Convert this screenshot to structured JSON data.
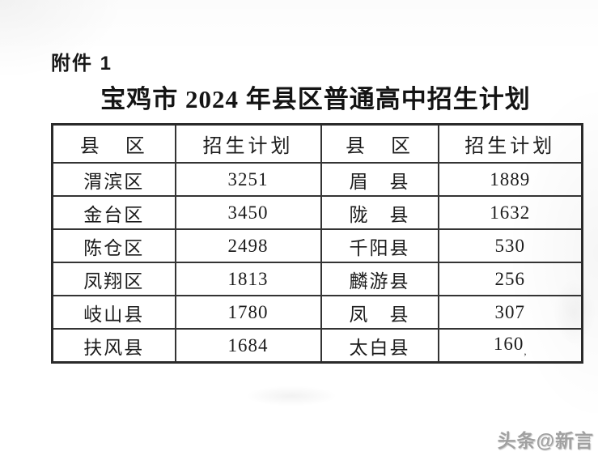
{
  "document": {
    "attachment_label": "附件 1",
    "title": "宝鸡市 2024 年县区普通高中招生计划"
  },
  "table": {
    "headers": [
      "县　区",
      "招生计划",
      "县　区",
      "招生计划"
    ],
    "rows": [
      [
        "渭滨区",
        "3251",
        "眉　县",
        "1889"
      ],
      [
        "金台区",
        "3450",
        "陇　县",
        "1632"
      ],
      [
        "陈仓区",
        "2498",
        "千阳县",
        "530"
      ],
      [
        "凤翔区",
        "1813",
        "麟游县",
        "256"
      ],
      [
        "岐山县",
        "1780",
        "凤　县",
        "307"
      ],
      [
        "扶风县",
        "1684",
        "太白县",
        "160"
      ]
    ],
    "scan_artifact_after_last_value": ","
  },
  "watermark": {
    "text": "头条@新言",
    "color": "#a0a0a0"
  },
  "colors": {
    "text": "#1c1c1c",
    "border": "#343434",
    "background": "#ffffff"
  }
}
